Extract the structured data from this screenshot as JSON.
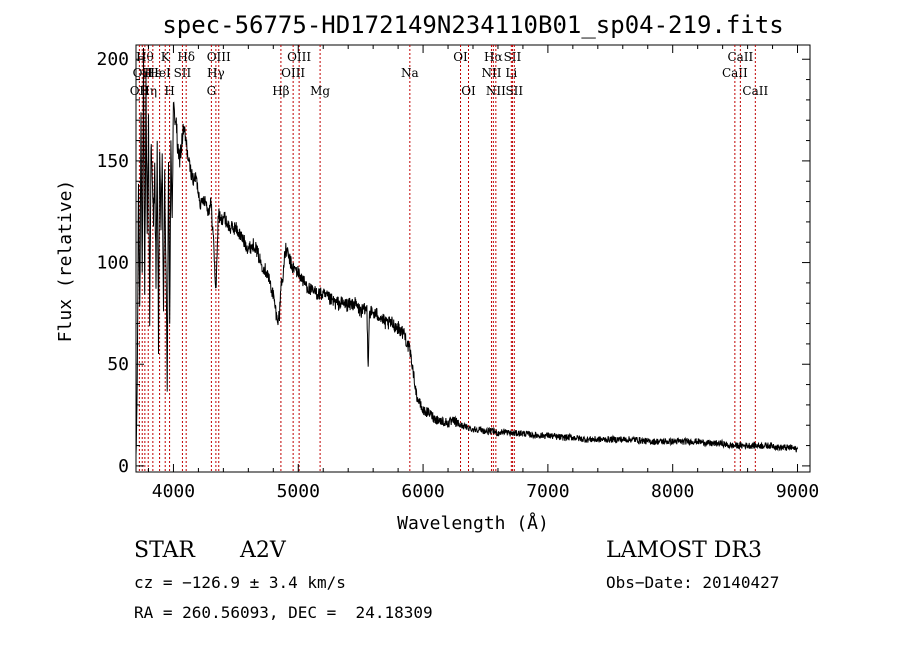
{
  "chart_data": {
    "type": "line",
    "title": "spec-56775-HD172149N234110B01_sp04-219.fits",
    "xlabel": "Wavelength (Å)",
    "ylabel": "Flux (relative)",
    "xlim": [
      3700,
      9100
    ],
    "ylim": [
      -3,
      207
    ],
    "xticks": [
      4000,
      5000,
      6000,
      7000,
      8000,
      9000
    ],
    "yticks": [
      0,
      50,
      100,
      150,
      200
    ],
    "series": [
      {
        "name": "flux",
        "x": [
          3700,
          3710,
          3720,
          3730,
          3740,
          3750,
          3760,
          3770,
          3780,
          3790,
          3800,
          3810,
          3820,
          3830,
          3840,
          3850,
          3860,
          3870,
          3880,
          3890,
          3900,
          3910,
          3920,
          3930,
          3940,
          3950,
          3960,
          3970,
          3980,
          3990,
          4000,
          4020,
          4040,
          4060,
          4080,
          4100,
          4120,
          4140,
          4160,
          4180,
          4200,
          4220,
          4240,
          4260,
          4280,
          4300,
          4320,
          4340,
          4360,
          4380,
          4400,
          4450,
          4500,
          4550,
          4600,
          4650,
          4700,
          4750,
          4800,
          4830,
          4850,
          4861,
          4870,
          4900,
          4950,
          5000,
          5050,
          5100,
          5150,
          5200,
          5250,
          5300,
          5350,
          5400,
          5450,
          5500,
          5550,
          5560,
          5570,
          5600,
          5650,
          5700,
          5750,
          5800,
          5850,
          5900,
          5950,
          6000,
          6050,
          6100,
          6150,
          6200,
          6250,
          6300,
          6350,
          6400,
          6450,
          6500,
          6550,
          6563,
          6600,
          6650,
          6700,
          6750,
          6800,
          6900,
          7000,
          7100,
          7200,
          7300,
          7400,
          7500,
          7600,
          7700,
          7800,
          7900,
          8000,
          8100,
          8200,
          8300,
          8400,
          8450,
          8500,
          8550,
          8600,
          8650,
          8700,
          8750,
          8800,
          8850,
          8900,
          8950,
          9000
        ],
        "values": [
          0,
          40,
          140,
          75,
          175,
          95,
          200,
          80,
          190,
          115,
          170,
          70,
          160,
          140,
          120,
          150,
          90,
          155,
          60,
          160,
          115,
          150,
          78,
          140,
          100,
          35,
          148,
          70,
          160,
          120,
          175,
          170,
          150,
          155,
          165,
          160,
          150,
          145,
          140,
          142,
          135,
          128,
          132,
          130,
          125,
          130,
          112,
          85,
          125,
          120,
          123,
          117,
          117,
          112,
          107,
          109,
          100,
          95,
          84,
          72,
          74,
          90,
          90,
          107,
          98,
          95,
          90,
          86,
          85,
          84,
          82,
          80,
          80,
          79,
          80,
          76,
          77,
          50,
          76,
          75,
          74,
          70,
          70,
          68,
          65,
          55,
          34,
          27,
          26,
          23,
          22,
          21,
          22,
          20,
          19,
          18,
          18,
          17,
          17,
          17,
          16,
          17,
          16,
          16,
          16,
          15,
          15,
          14,
          14,
          13,
          13,
          13,
          13,
          13,
          12,
          12,
          12,
          12,
          12,
          11,
          11,
          10,
          10,
          10,
          10,
          10,
          10,
          10,
          10,
          9,
          9,
          9,
          8
        ]
      }
    ],
    "lines": [
      {
        "w": 3727,
        "label": "OII",
        "row": 3
      },
      {
        "w": 3750,
        "label": "OII",
        "row": 2
      },
      {
        "w": 3771,
        "label": "Hθ",
        "row": 1
      },
      {
        "w": 3798,
        "label": "Hη",
        "row": 3
      },
      {
        "w": 3835,
        "label": "Hε",
        "row": 2
      },
      {
        "w": 3889,
        "label": "HeI",
        "row": 2
      },
      {
        "w": 3934,
        "label": "K",
        "row": 1
      },
      {
        "w": 3969,
        "label": "H",
        "row": 3
      },
      {
        "w": 4072,
        "label": "SII",
        "row": 2
      },
      {
        "w": 4102,
        "label": "Hδ",
        "row": 1
      },
      {
        "w": 4304,
        "label": "G",
        "row": 3
      },
      {
        "w": 4340,
        "label": "Hγ",
        "row": 2
      },
      {
        "w": 4363,
        "label": "OIII",
        "row": 1
      },
      {
        "w": 4861,
        "label": "Hβ",
        "row": 3
      },
      {
        "w": 4959,
        "label": "OIII",
        "row": 2
      },
      {
        "w": 5007,
        "label": "OIII",
        "row": 1
      },
      {
        "w": 5175,
        "label": "Mg",
        "row": 3
      },
      {
        "w": 5894,
        "label": "Na",
        "row": 2
      },
      {
        "w": 6300,
        "label": "OI",
        "row": 1
      },
      {
        "w": 6364,
        "label": "OI",
        "row": 3
      },
      {
        "w": 6548,
        "label": "NII",
        "row": 2
      },
      {
        "w": 6563,
        "label": "Hα",
        "row": 1
      },
      {
        "w": 6583,
        "label": "NII",
        "row": 3
      },
      {
        "w": 6707,
        "label": "Li",
        "row": 2
      },
      {
        "w": 6716,
        "label": "SII",
        "row": 1
      },
      {
        "w": 6731,
        "label": "SII",
        "row": 3
      },
      {
        "w": 8498,
        "label": "CaII",
        "row": 2
      },
      {
        "w": 8542,
        "label": "CaII",
        "row": 1
      },
      {
        "w": 8662,
        "label": "CaII",
        "row": 3
      }
    ]
  },
  "info": {
    "object_type": "STAR",
    "subclass": "A2V",
    "survey": "LAMOST DR3",
    "redshift_line": "cz = −126.9 ± 3.4 km/s",
    "obs_date": "Obs−Date: 20140427",
    "radec_line": "RA = 260.56093, DEC =  24.18309"
  }
}
